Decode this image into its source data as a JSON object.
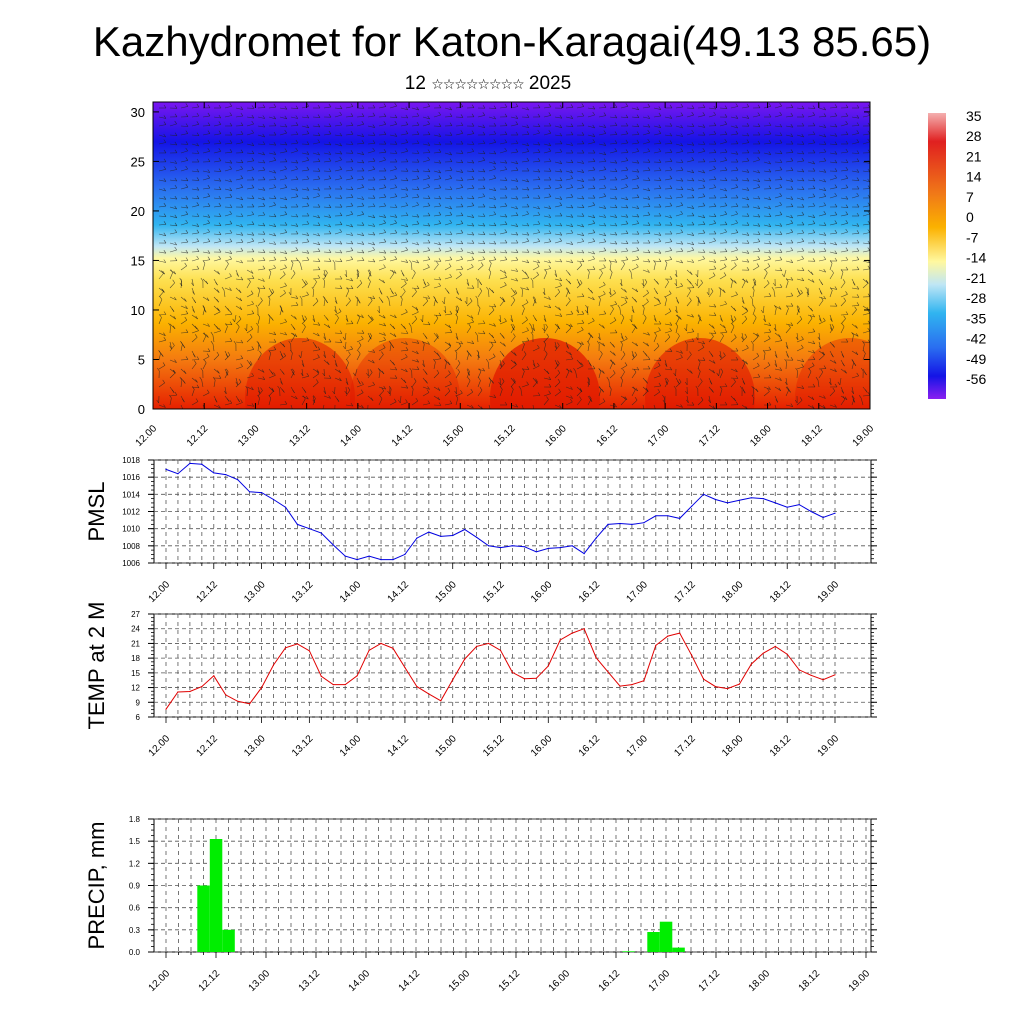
{
  "title": "Kazhydromet for Katon-Karagai(49.13 85.65)",
  "subtitle": {
    "day": "12",
    "month_glyphs": "☆☆☆☆☆☆☆☆",
    "year": "2025"
  },
  "chart_data": [
    {
      "type": "heatmap",
      "x_tick_labels": [
        "12.00",
        "12.12",
        "13.00",
        "13.12",
        "14.00",
        "14.12",
        "15.00",
        "15.12",
        "16.00",
        "16.12",
        "17.00",
        "17.12",
        "18.00",
        "18.12",
        "19.00"
      ],
      "y_tick_labels": [
        "0",
        "5",
        "10",
        "15",
        "20",
        "25",
        "30"
      ],
      "ylim": [
        0,
        31
      ],
      "colorbar_labels": [
        "35",
        "28",
        "21",
        "14",
        "7",
        "0",
        "-7",
        "-14",
        "-21",
        "-28",
        "-35",
        "-42",
        "-49",
        "-56"
      ],
      "colors": {
        "top": "#7a16f0",
        "upper": "#1414e6",
        "mid": "#30b4f0",
        "freeze": "#fff8a0",
        "warm": "#fbb200",
        "hot": "#e62000"
      },
      "overlay": "wind barbs"
    },
    {
      "type": "line",
      "ylabel": "PMSL",
      "yticks": [
        "1006",
        "1008",
        "1010",
        "1012",
        "1014",
        "1016",
        "1018"
      ],
      "ylim": [
        1006,
        1018
      ],
      "x_tick_labels": [
        "12.00",
        "12.12",
        "13.00",
        "13.12",
        "14.00",
        "14.12",
        "15.00",
        "15.12",
        "16.00",
        "16.12",
        "17.00",
        "17.12",
        "18.00",
        "18.12",
        "19.00"
      ],
      "color": "#0000e0",
      "x_step_hours": 3,
      "values": [
        1016.9,
        1016.4,
        1017.6,
        1017.5,
        1016.5,
        1016.3,
        1015.7,
        1014.3,
        1014.2,
        1013.4,
        1012.5,
        1010.5,
        1010.0,
        1009.5,
        1008.1,
        1006.8,
        1006.4,
        1006.8,
        1006.4,
        1006.4,
        1007.0,
        1008.9,
        1009.6,
        1009.1,
        1009.2,
        1009.9,
        1009.0,
        1008.0,
        1007.8,
        1008.0,
        1007.9,
        1007.3,
        1007.7,
        1007.8,
        1008.0,
        1007.1,
        1008.9,
        1010.5,
        1010.6,
        1010.5,
        1010.7,
        1011.5,
        1011.5,
        1011.2,
        1012.6,
        1014.0,
        1013.4,
        1013.0,
        1013.3,
        1013.6,
        1013.5,
        1013.0,
        1012.5,
        1012.8,
        1012.0,
        1011.3,
        1011.8
      ]
    },
    {
      "type": "line",
      "ylabel": "TEMP at 2 M",
      "yticks": [
        "6",
        "9",
        "12",
        "15",
        "18",
        "21",
        "24",
        "27"
      ],
      "ylim": [
        6,
        27
      ],
      "x_tick_labels": [
        "12.00",
        "12.12",
        "13.00",
        "13.12",
        "14.00",
        "14.12",
        "15.00",
        "15.12",
        "16.00",
        "16.12",
        "17.00",
        "17.12",
        "18.00",
        "18.12",
        "19.00"
      ],
      "color": "#e00000",
      "x_step_hours": 3,
      "values": [
        7.6,
        11.1,
        11.2,
        12.2,
        14.4,
        10.5,
        9.2,
        8.7,
        12.0,
        16.6,
        20.1,
        20.9,
        19.5,
        14.3,
        12.6,
        12.6,
        14.4,
        19.6,
        21.0,
        20.0,
        16.1,
        12.2,
        10.7,
        9.3,
        13.6,
        17.8,
        20.4,
        21.0,
        19.6,
        15.1,
        13.8,
        13.9,
        16.4,
        21.7,
        23.1,
        24.0,
        18.1,
        15.2,
        12.3,
        12.6,
        13.4,
        20.6,
        22.5,
        23.1,
        18.6,
        13.7,
        12.2,
        11.8,
        12.7,
        16.8,
        19.0,
        20.4,
        18.8,
        15.6,
        14.5,
        13.6,
        14.6
      ]
    },
    {
      "type": "bar",
      "ylabel": "PRECIP, mm",
      "yticks": [
        "0.0",
        "0.3",
        "0.6",
        "0.9",
        "1.2",
        "1.5",
        "1.8"
      ],
      "ylim": [
        0,
        1.8
      ],
      "x_tick_labels": [
        "12.00",
        "12.12",
        "13.00",
        "13.12",
        "14.00",
        "14.12",
        "15.00",
        "15.12",
        "16.00",
        "16.12",
        "17.00",
        "17.12",
        "18.00",
        "18.12",
        "19.00"
      ],
      "color": "#00ee00",
      "x_step_hours": 3,
      "values": [
        0,
        0,
        0,
        0.9,
        1.53,
        0.3,
        0,
        0,
        0,
        0,
        0,
        0,
        0,
        0,
        0,
        0,
        0,
        0,
        0,
        0,
        0,
        0,
        0,
        0,
        0,
        0,
        0,
        0,
        0,
        0,
        0,
        0,
        0,
        0,
        0,
        0,
        0,
        0.01,
        0,
        0.27,
        0.41,
        0.06,
        0,
        0,
        0,
        0,
        0,
        0,
        0,
        0,
        0,
        0,
        0,
        0,
        0,
        0,
        0
      ]
    }
  ]
}
